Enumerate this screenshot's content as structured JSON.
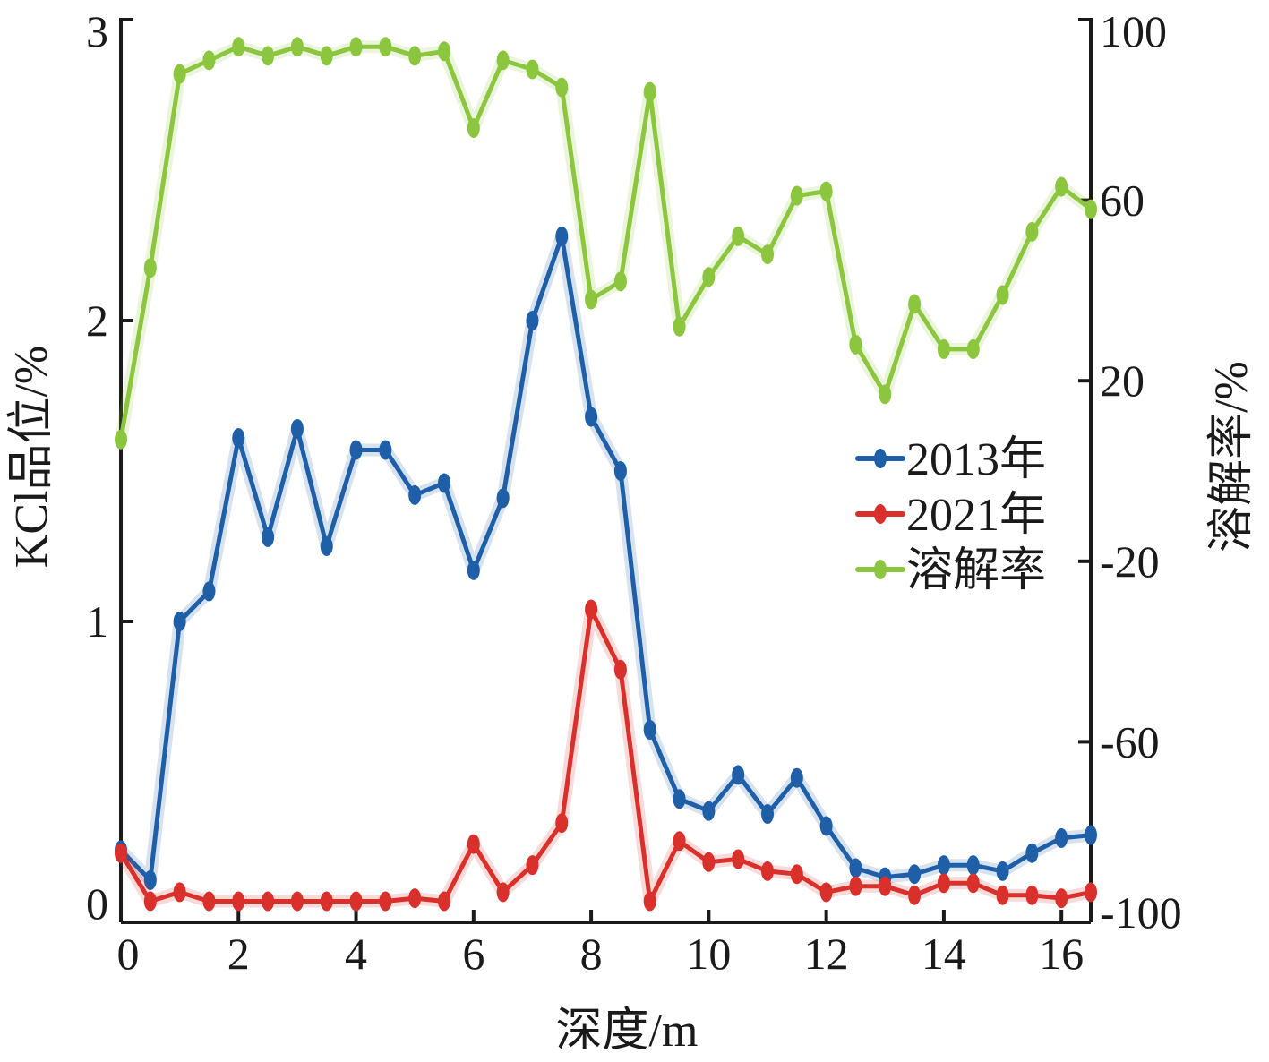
{
  "chart_data": {
    "type": "line",
    "xlabel": "深度/m",
    "ylabel_left": "KCl品位/%",
    "ylabel_right": "溶解率/%",
    "x_ticks": [
      "0",
      "2",
      "4",
      "6",
      "8",
      "10",
      "12",
      "14",
      "16"
    ],
    "y_left_ticks": [
      "0",
      "1",
      "2",
      "3"
    ],
    "y_right_ticks": [
      "-100",
      "-60",
      "-20",
      "20",
      "60",
      "100"
    ],
    "xlim": [
      0,
      16.5
    ],
    "ylim_left": [
      0,
      3
    ],
    "ylim_right": [
      -100,
      100
    ],
    "legend_position": "right-middle",
    "x": [
      0,
      0.5,
      1,
      1.5,
      2,
      2.5,
      3,
      3.5,
      4,
      4.5,
      5,
      5.5,
      6,
      6.5,
      7,
      7.5,
      8,
      8.5,
      9,
      9.5,
      10,
      10.5,
      11,
      11.5,
      12,
      12.5,
      13,
      13.5,
      14,
      14.5,
      15,
      15.5,
      16,
      16.5
    ],
    "series": [
      {
        "name": "2013年",
        "axis": "left",
        "color": "#1f5fa8",
        "values": [
          0.24,
          0.14,
          1.0,
          1.1,
          1.61,
          1.28,
          1.64,
          1.25,
          1.57,
          1.57,
          1.42,
          1.46,
          1.17,
          1.41,
          2.0,
          2.28,
          1.68,
          1.5,
          0.64,
          0.41,
          0.37,
          0.49,
          0.36,
          0.48,
          0.32,
          0.18,
          0.15,
          0.16,
          0.19,
          0.19,
          0.17,
          0.23,
          0.28,
          0.29
        ]
      },
      {
        "name": "2021年",
        "axis": "left",
        "color": "#d9302c",
        "values": [
          0.23,
          0.07,
          0.1,
          0.07,
          0.07,
          0.07,
          0.07,
          0.07,
          0.07,
          0.07,
          0.08,
          0.07,
          0.26,
          0.1,
          0.19,
          0.33,
          1.04,
          0.84,
          0.07,
          0.27,
          0.2,
          0.21,
          0.17,
          0.16,
          0.1,
          0.12,
          0.12,
          0.09,
          0.13,
          0.13,
          0.09,
          0.09,
          0.08,
          0.1
        ]
      },
      {
        "name": "溶解率",
        "axis": "right",
        "color": "#8cc63f",
        "values": [
          7,
          45,
          88,
          91,
          94,
          92,
          94,
          92,
          94,
          94,
          92,
          93,
          76,
          91,
          89,
          85,
          38,
          42,
          84,
          32,
          43,
          52,
          48,
          61,
          62,
          28,
          17,
          37,
          27,
          27,
          39,
          53,
          63,
          58
        ]
      }
    ]
  }
}
